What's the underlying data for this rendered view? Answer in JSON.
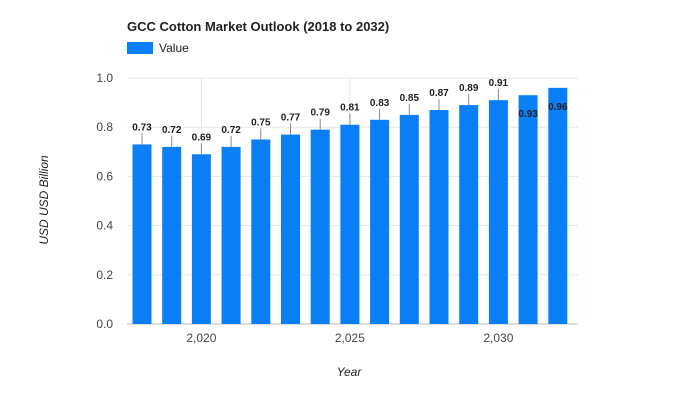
{
  "chart_data": {
    "type": "bar",
    "title": "GCC Cotton Market Outlook (2018 to 2032)",
    "xlabel": "Year",
    "ylabel": "USD USD Billion",
    "categories": [
      2018,
      2019,
      2020,
      2021,
      2022,
      2023,
      2024,
      2025,
      2026,
      2027,
      2028,
      2029,
      2030,
      2031,
      2032
    ],
    "series": [
      {
        "name": "Value",
        "values": [
          0.73,
          0.72,
          0.69,
          0.72,
          0.75,
          0.77,
          0.79,
          0.81,
          0.83,
          0.85,
          0.87,
          0.89,
          0.91,
          0.93,
          0.96
        ],
        "data_labels": [
          "0.73",
          "0.72",
          "0.69",
          "0.72",
          "0.75",
          "0.77",
          "0.79",
          "0.81",
          "0.83",
          "0.85",
          "0.87",
          "0.89",
          "0.91",
          "0.93",
          "0.96"
        ]
      }
    ],
    "x_ticks": [
      {
        "value": 2020,
        "label": "2,020"
      },
      {
        "value": 2025,
        "label": "2,025"
      },
      {
        "value": 2030,
        "label": "2,030"
      }
    ],
    "y_ticks": [
      {
        "value": 0.0,
        "label": "0.0"
      },
      {
        "value": 0.2,
        "label": "0.2"
      },
      {
        "value": 0.4,
        "label": "0.4"
      },
      {
        "value": 0.6,
        "label": "0.6"
      },
      {
        "value": 0.8,
        "label": "0.8"
      },
      {
        "value": 1.0,
        "label": "1.0"
      }
    ],
    "ylim": [
      0,
      1.0
    ],
    "grid": true,
    "legend": "top-left",
    "colors": {
      "bar": "#0a7ff5",
      "grid": "#e6e6e6",
      "axis_line": "#bbbbbb",
      "label_line": "#888888"
    }
  }
}
